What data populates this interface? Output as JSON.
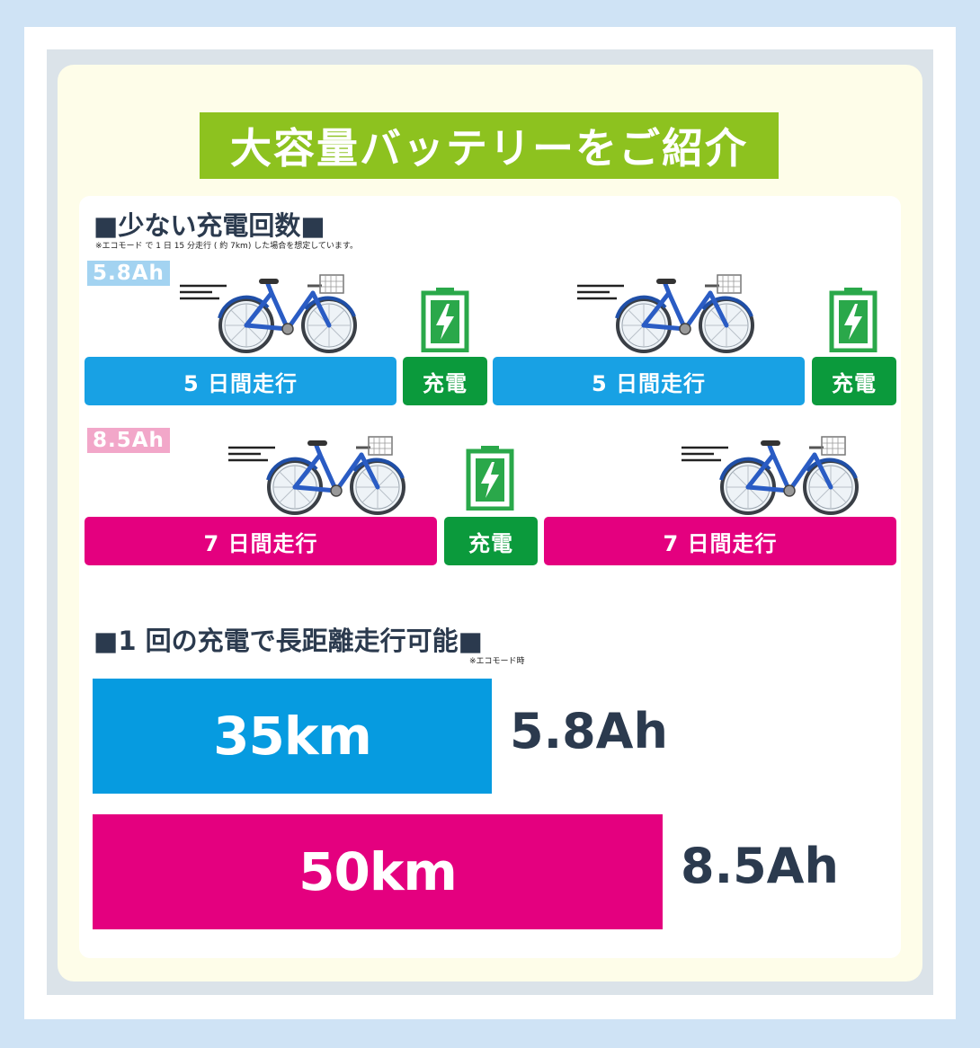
{
  "title": "大容量バッテリーをご紹介",
  "section1": {
    "heading": "■少ない充電回数■",
    "note": "※エコモード で 1 日 15 分走行 ( 約 7km) した場合を想定しています。",
    "rows": [
      {
        "tag": "5.8Ah",
        "tag_color": "#a3d3f1",
        "bars": [
          {
            "label": "5 日間走行",
            "kind": "run"
          },
          {
            "label": "充電",
            "kind": "charge"
          },
          {
            "label": "5 日間走行",
            "kind": "run"
          },
          {
            "label": "充電",
            "kind": "charge"
          }
        ]
      },
      {
        "tag": "8.5Ah",
        "tag_color": "#f2a7c9",
        "bars": [
          {
            "label": "7 日間走行",
            "kind": "run"
          },
          {
            "label": "充電",
            "kind": "charge"
          },
          {
            "label": "7 日間走行",
            "kind": "run"
          }
        ]
      }
    ],
    "icons": [
      "bicycle-icon",
      "battery-charging-icon"
    ]
  },
  "section2": {
    "heading": "■1 回の充電で長距離走行可能■",
    "note": "※エコモード時",
    "bars": [
      {
        "range": "35km",
        "capacity": "5.8Ah",
        "value_km": 35,
        "color": "#069be0"
      },
      {
        "range": "50km",
        "capacity": "8.5Ah",
        "value_km": 50,
        "color": "#e4007f"
      }
    ]
  },
  "colors": {
    "background": "#cfe3f5",
    "title_green": "#8dc21f",
    "blue": "#18a1e4",
    "pink": "#e4007f",
    "green": "#0b9a3c",
    "text_dark": "#2b3a4e"
  }
}
